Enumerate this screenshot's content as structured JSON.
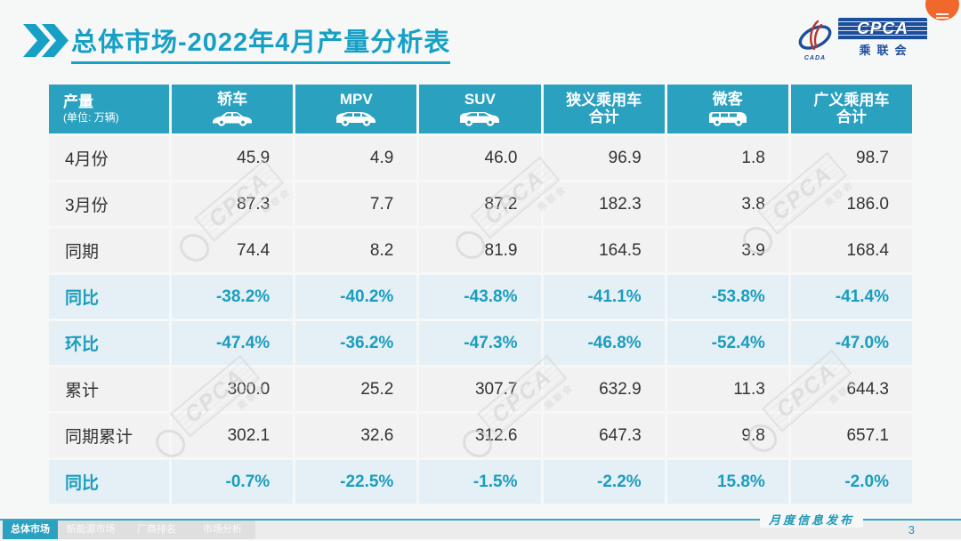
{
  "header": {
    "title": "总体市场-2022年4月产量分析表"
  },
  "logo": {
    "cpca": "CPCA",
    "cn": "乘联会",
    "cada": "CADA"
  },
  "table": {
    "unit_title": "产量",
    "unit_sub": "(单位: 万辆)",
    "columns": [
      {
        "label": "轿车",
        "icon": "sedan-icon"
      },
      {
        "label": "MPV",
        "icon": "mpv-icon"
      },
      {
        "label": "SUV",
        "icon": "suv-icon"
      },
      {
        "label": "狭义乘用车\n合计",
        "icon": null
      },
      {
        "label": "微客",
        "icon": "microvan-icon"
      },
      {
        "label": "广义乘用车\n合计",
        "icon": null
      }
    ],
    "rows": [
      {
        "label": "4月份",
        "type": "value",
        "values": [
          "45.9",
          "4.9",
          "46.0",
          "96.9",
          "1.8",
          "98.7"
        ]
      },
      {
        "label": "3月份",
        "type": "value",
        "values": [
          "87.3",
          "7.7",
          "87.2",
          "182.3",
          "3.8",
          "186.0"
        ]
      },
      {
        "label": "同期",
        "type": "value",
        "values": [
          "74.4",
          "8.2",
          "81.9",
          "164.5",
          "3.9",
          "168.4"
        ]
      },
      {
        "label": "同比",
        "type": "percent",
        "values": [
          "-38.2%",
          "-40.2%",
          "-43.8%",
          "-41.1%",
          "-53.8%",
          "-41.4%"
        ]
      },
      {
        "label": "环比",
        "type": "percent",
        "values": [
          "-47.4%",
          "-36.2%",
          "-47.3%",
          "-46.8%",
          "-52.4%",
          "-47.0%"
        ]
      },
      {
        "label": "累计",
        "type": "value",
        "values": [
          "300.0",
          "25.2",
          "307.7",
          "632.9",
          "11.3",
          "644.3"
        ]
      },
      {
        "label": "同期累计",
        "type": "value",
        "values": [
          "302.1",
          "32.6",
          "312.6",
          "647.3",
          "9.8",
          "657.1"
        ]
      },
      {
        "label": "同比",
        "type": "percent",
        "values": [
          "-0.7%",
          "-22.5%",
          "-1.5%",
          "-2.2%",
          "15.8%",
          "-2.0%"
        ]
      }
    ]
  },
  "watermark": {
    "text": "CPCA",
    "subtext": "乘联会"
  },
  "footer": {
    "tabs": [
      {
        "label": "总体市场",
        "active": true,
        "name": "tab-overall-market"
      },
      {
        "label": "新能源市场",
        "active": false,
        "name": "tab-nev-market"
      },
      {
        "label": "厂商排名",
        "active": false,
        "name": "tab-manufacturer-ranking"
      },
      {
        "label": "市场分析",
        "active": false,
        "name": "tab-market-analysis"
      }
    ],
    "release_label": "月度信息发布",
    "page_number": "3"
  },
  "colors": {
    "accent_teal": "#2ba1c0",
    "title_teal": "#17a0c6",
    "percent_teal": "#1b9dbd",
    "logo_blue": "#1b4e9b",
    "fab_orange": "#f0682b",
    "row_bg": "#f2f2f2",
    "percent_row_bg": "#e4f0f5"
  }
}
